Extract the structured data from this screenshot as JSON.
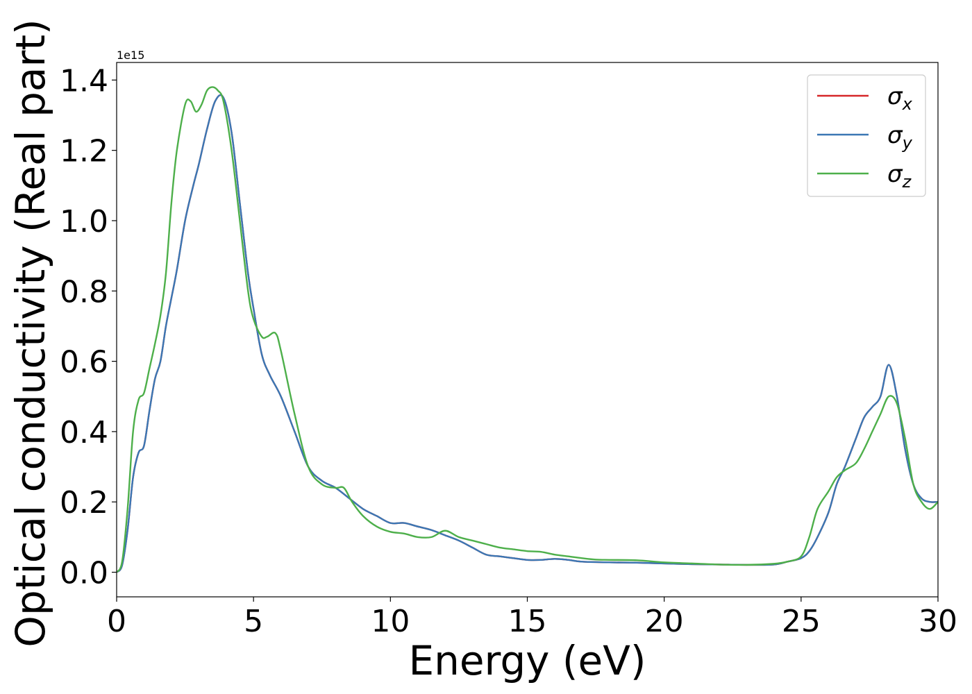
{
  "chart_data": {
    "type": "line",
    "title": "",
    "xlabel": "Energy (eV)",
    "ylabel": "Optical conductivity (Real part)",
    "y_scale_text": "1e15",
    "xlim": [
      0,
      30
    ],
    "ylim": [
      -0.07,
      1.45
    ],
    "x_ticks": [
      0,
      5,
      10,
      15,
      20,
      25,
      30
    ],
    "y_ticks": [
      0.0,
      0.2,
      0.4,
      0.6,
      0.8,
      1.0,
      1.2,
      1.4
    ],
    "x_tick_labels": [
      "0",
      "5",
      "10",
      "15",
      "20",
      "25",
      "30"
    ],
    "y_tick_labels": [
      "0.0",
      "0.2",
      "0.4",
      "0.6",
      "0.8",
      "1.0",
      "1.2",
      "1.4"
    ],
    "grid": false,
    "legend_position": "top-right",
    "legend": [
      {
        "sym": "σ",
        "sub": "x",
        "color": "#d62728"
      },
      {
        "sym": "σ",
        "sub": "y",
        "color": "#3a77b4"
      },
      {
        "sym": "σ",
        "sub": "z",
        "color": "#4daf4a"
      }
    ],
    "series": [
      {
        "color": "#d62728",
        "x": [
          0,
          0.2,
          0.4,
          0.6,
          0.8,
          1.0,
          1.2,
          1.4,
          1.6,
          1.8,
          2.0,
          2.2,
          2.5,
          2.8,
          3.0,
          3.3,
          3.6,
          3.9,
          4.2,
          4.5,
          4.8,
          5.0,
          5.3,
          5.6,
          6.0,
          6.5,
          7.0,
          7.5,
          8.0,
          8.5,
          9.0,
          9.5,
          10.0,
          10.5,
          11.0,
          11.5,
          12.0,
          12.5,
          13.0,
          13.5,
          14.0,
          14.5,
          15.0,
          15.5,
          16.0,
          16.5,
          17.0,
          18.0,
          19.0,
          20.0,
          21.0,
          22.0,
          23.0,
          24.0,
          24.5,
          25.0,
          25.3,
          25.6,
          26.0,
          26.3,
          26.6,
          27.0,
          27.3,
          27.6,
          27.9,
          28.2,
          28.5,
          28.8,
          29.1,
          29.4,
          29.7,
          30.0
        ],
        "y": [
          0.0,
          0.02,
          0.12,
          0.27,
          0.34,
          0.36,
          0.46,
          0.55,
          0.6,
          0.7,
          0.78,
          0.86,
          1.0,
          1.1,
          1.16,
          1.26,
          1.34,
          1.35,
          1.25,
          1.05,
          0.85,
          0.75,
          0.62,
          0.56,
          0.5,
          0.4,
          0.3,
          0.26,
          0.24,
          0.21,
          0.18,
          0.16,
          0.14,
          0.14,
          0.13,
          0.12,
          0.105,
          0.09,
          0.07,
          0.05,
          0.045,
          0.04,
          0.035,
          0.035,
          0.038,
          0.035,
          0.03,
          0.028,
          0.027,
          0.025,
          0.023,
          0.022,
          0.021,
          0.022,
          0.03,
          0.04,
          0.06,
          0.1,
          0.17,
          0.25,
          0.3,
          0.38,
          0.44,
          0.47,
          0.5,
          0.59,
          0.5,
          0.35,
          0.25,
          0.21,
          0.2,
          0.2
        ]
      },
      {
        "color": "#3a77b4",
        "x": [
          0,
          0.2,
          0.4,
          0.6,
          0.8,
          1.0,
          1.2,
          1.4,
          1.6,
          1.8,
          2.0,
          2.2,
          2.5,
          2.8,
          3.0,
          3.3,
          3.6,
          3.9,
          4.2,
          4.5,
          4.8,
          5.0,
          5.3,
          5.6,
          6.0,
          6.5,
          7.0,
          7.5,
          8.0,
          8.5,
          9.0,
          9.5,
          10.0,
          10.5,
          11.0,
          11.5,
          12.0,
          12.5,
          13.0,
          13.5,
          14.0,
          14.5,
          15.0,
          15.5,
          16.0,
          16.5,
          17.0,
          18.0,
          19.0,
          20.0,
          21.0,
          22.0,
          23.0,
          24.0,
          24.5,
          25.0,
          25.3,
          25.6,
          26.0,
          26.3,
          26.6,
          27.0,
          27.3,
          27.6,
          27.9,
          28.2,
          28.5,
          28.8,
          29.1,
          29.4,
          29.7,
          30.0
        ],
        "y": [
          0.0,
          0.02,
          0.12,
          0.27,
          0.34,
          0.36,
          0.46,
          0.55,
          0.6,
          0.7,
          0.78,
          0.86,
          1.0,
          1.1,
          1.16,
          1.26,
          1.34,
          1.35,
          1.25,
          1.05,
          0.85,
          0.75,
          0.62,
          0.56,
          0.5,
          0.4,
          0.3,
          0.26,
          0.24,
          0.21,
          0.18,
          0.16,
          0.14,
          0.14,
          0.13,
          0.12,
          0.105,
          0.09,
          0.07,
          0.05,
          0.045,
          0.04,
          0.035,
          0.035,
          0.038,
          0.035,
          0.03,
          0.028,
          0.027,
          0.025,
          0.023,
          0.022,
          0.021,
          0.022,
          0.03,
          0.04,
          0.06,
          0.1,
          0.17,
          0.25,
          0.3,
          0.38,
          0.44,
          0.47,
          0.5,
          0.59,
          0.5,
          0.35,
          0.25,
          0.21,
          0.2,
          0.2
        ]
      },
      {
        "color": "#4daf4a",
        "x": [
          0,
          0.2,
          0.4,
          0.6,
          0.8,
          1.0,
          1.2,
          1.4,
          1.6,
          1.8,
          2.0,
          2.2,
          2.5,
          2.7,
          2.9,
          3.1,
          3.3,
          3.5,
          3.7,
          3.9,
          4.2,
          4.5,
          4.8,
          5.0,
          5.3,
          5.5,
          5.8,
          6.0,
          6.5,
          7.0,
          7.5,
          8.0,
          8.3,
          8.6,
          9.0,
          9.5,
          10.0,
          10.5,
          11.0,
          11.5,
          12.0,
          12.5,
          13.0,
          13.5,
          14.0,
          14.5,
          15.0,
          15.5,
          16.0,
          16.5,
          17.0,
          17.5,
          18.0,
          19.0,
          20.0,
          21.0,
          22.0,
          23.0,
          24.0,
          24.5,
          25.0,
          25.3,
          25.6,
          26.0,
          26.3,
          26.6,
          27.0,
          27.3,
          27.6,
          27.9,
          28.2,
          28.5,
          28.8,
          29.1,
          29.4,
          29.7,
          30.0
        ],
        "y": [
          0.0,
          0.03,
          0.18,
          0.4,
          0.49,
          0.51,
          0.58,
          0.65,
          0.73,
          0.85,
          1.05,
          1.2,
          1.33,
          1.34,
          1.31,
          1.33,
          1.37,
          1.38,
          1.37,
          1.34,
          1.2,
          1.0,
          0.8,
          0.72,
          0.67,
          0.67,
          0.68,
          0.63,
          0.45,
          0.3,
          0.25,
          0.24,
          0.24,
          0.2,
          0.16,
          0.13,
          0.115,
          0.11,
          0.1,
          0.1,
          0.118,
          0.1,
          0.09,
          0.08,
          0.07,
          0.065,
          0.06,
          0.058,
          0.05,
          0.045,
          0.04,
          0.036,
          0.035,
          0.034,
          0.028,
          0.025,
          0.022,
          0.021,
          0.024,
          0.03,
          0.045,
          0.1,
          0.18,
          0.23,
          0.27,
          0.29,
          0.31,
          0.35,
          0.4,
          0.45,
          0.5,
          0.48,
          0.38,
          0.25,
          0.2,
          0.18,
          0.2
        ]
      }
    ]
  }
}
